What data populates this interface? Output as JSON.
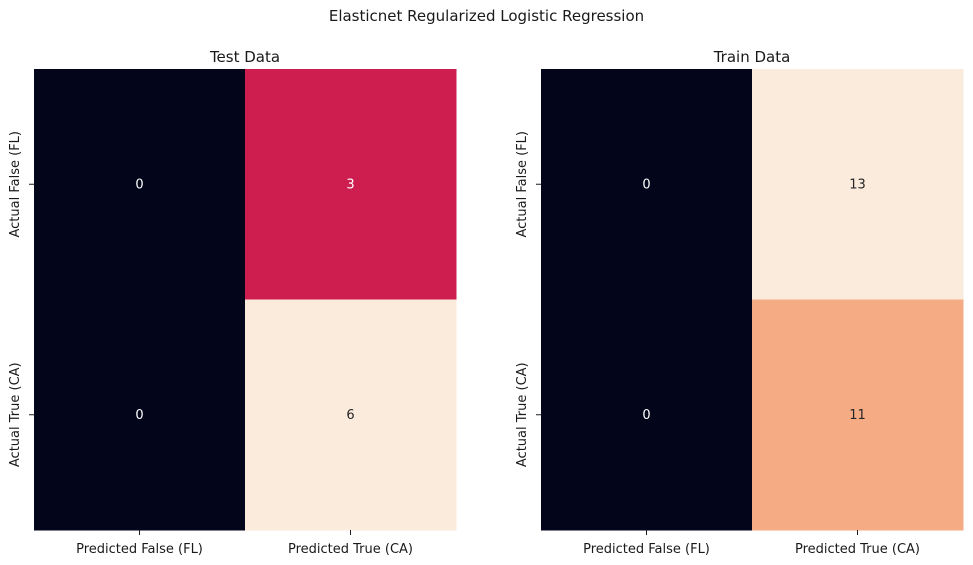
{
  "figure": {
    "title": "Elasticnet Regularized Logistic Regression"
  },
  "chart_data": [
    {
      "type": "heatmap",
      "title": "Test Data",
      "x_categories": [
        "Predicted False (FL)",
        "Predicted True (CA)"
      ],
      "y_categories": [
        "Actual False (FL)",
        "Actual True (CA)"
      ],
      "values": [
        [
          0,
          3
        ],
        [
          0,
          6
        ]
      ],
      "value_range": [
        0,
        6
      ],
      "colormap": "rocket",
      "colorbar": false,
      "grid": false
    },
    {
      "type": "heatmap",
      "title": "Train Data",
      "x_categories": [
        "Predicted False (FL)",
        "Predicted True (CA)"
      ],
      "y_categories": [
        "Actual False (FL)",
        "Actual True (CA)"
      ],
      "values": [
        [
          0,
          13
        ],
        [
          0,
          11
        ]
      ],
      "value_range": [
        0,
        13
      ],
      "colormap": "rocket",
      "colorbar": false,
      "grid": false
    }
  ]
}
